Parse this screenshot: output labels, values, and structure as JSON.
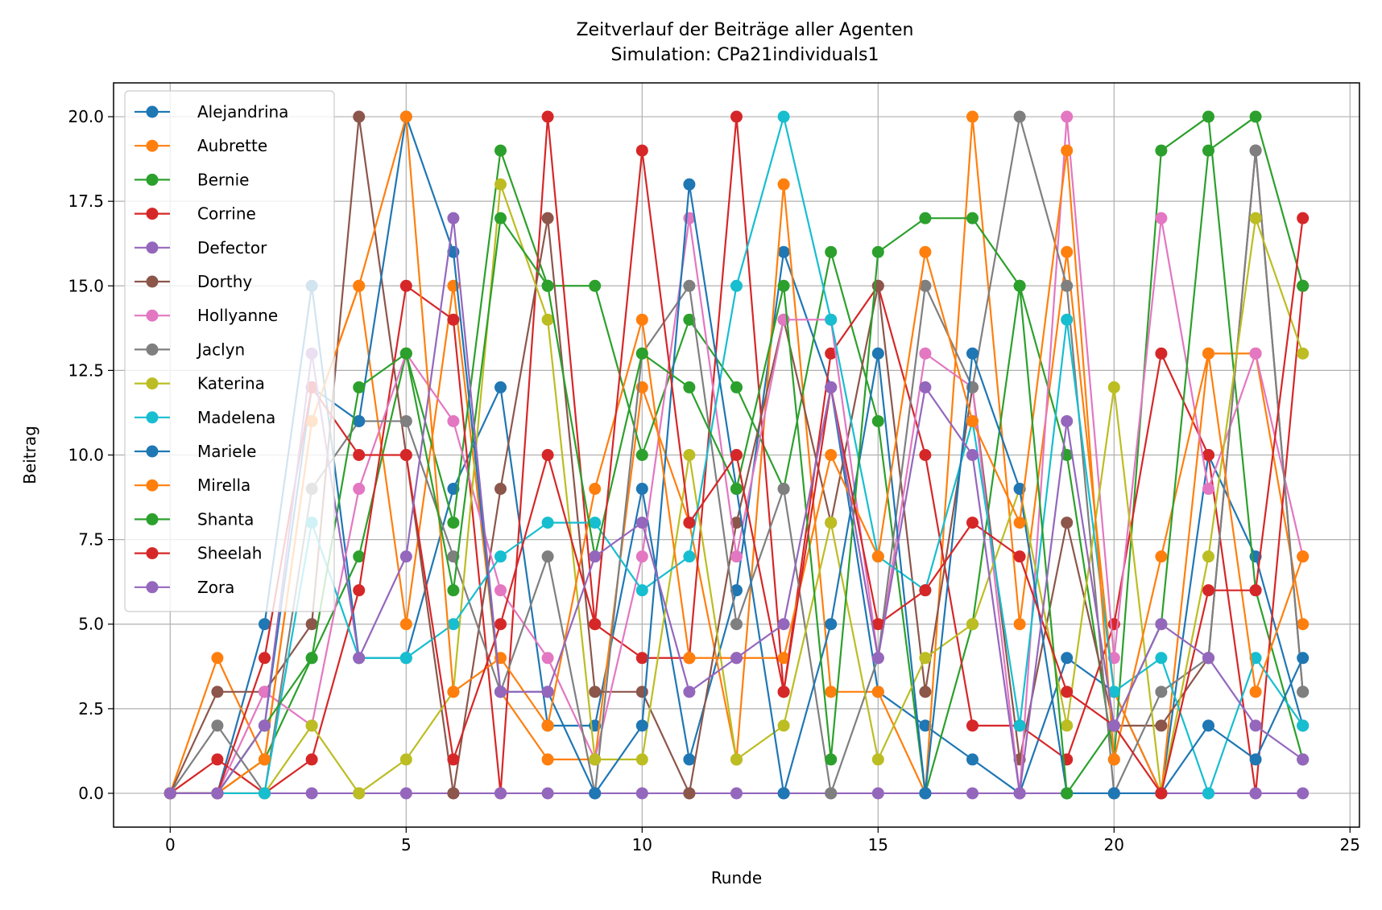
{
  "chart_data": {
    "type": "line",
    "title": "Zeitverlauf der Beiträge aller Agenten",
    "subtitle": "Simulation: CPa21individuals1",
    "xlabel": "Runde",
    "ylabel": "Beitrag",
    "xlim": [
      -1.2,
      25.2
    ],
    "ylim": [
      -1.0,
      21.0
    ],
    "xticks": [
      0,
      5,
      10,
      15,
      20,
      25
    ],
    "yticks": [
      0.0,
      2.5,
      5.0,
      7.5,
      10.0,
      12.5,
      15.0,
      17.5,
      20.0
    ],
    "grid": true,
    "legend_position": "top-left",
    "x": [
      0,
      1,
      2,
      3,
      4,
      5,
      6,
      7,
      8,
      9,
      10,
      11,
      12,
      13,
      14,
      15,
      16,
      17,
      18,
      19,
      20,
      21,
      22,
      23,
      24
    ],
    "series": [
      {
        "name": "Alejandrina",
        "color": "#1f77b4",
        "values": [
          0,
          0,
          5,
          15,
          4,
          4,
          9,
          12,
          2,
          2,
          9,
          1,
          6,
          16,
          12,
          3,
          2,
          1,
          0,
          4,
          3,
          0,
          10,
          7,
          2
        ]
      },
      {
        "name": "Aubrette",
        "color": "#ff7f0e",
        "values": [
          0,
          4,
          1,
          11,
          15,
          5,
          15,
          3,
          1,
          1,
          12,
          8,
          1,
          18,
          3,
          3,
          0,
          20,
          5,
          16,
          3,
          0,
          13,
          13,
          5
        ]
      },
      {
        "name": "Bernie",
        "color": "#2ca02c",
        "values": [
          0,
          0,
          1,
          4,
          7,
          13,
          8,
          19,
          15,
          15,
          10,
          14,
          12,
          9,
          16,
          11,
          0,
          5,
          15,
          10,
          1,
          19,
          20,
          6,
          1
        ]
      },
      {
        "name": "Corrine",
        "color": "#d62728",
        "values": [
          0,
          1,
          0,
          1,
          6,
          15,
          14,
          0,
          20,
          5,
          4,
          4,
          20,
          3,
          13,
          15,
          10,
          2,
          2,
          1,
          5,
          13,
          10,
          0,
          15
        ]
      },
      {
        "name": "Defector",
        "color": "#9467bd",
        "values": [
          0,
          0,
          0,
          0,
          0,
          0,
          0,
          0,
          0,
          0,
          0,
          0,
          0,
          0,
          0,
          0,
          0,
          0,
          0,
          0,
          0,
          0,
          0,
          0,
          0
        ]
      },
      {
        "name": "Dorthy",
        "color": "#8c564b",
        "values": [
          0,
          3,
          3,
          5,
          20,
          10,
          0,
          9,
          17,
          3,
          3,
          0,
          8,
          14,
          8,
          15,
          3,
          12,
          1,
          8,
          2,
          2,
          4,
          19,
          3
        ]
      },
      {
        "name": "Hollyanne",
        "color": "#e377c2",
        "values": [
          0,
          0,
          3,
          2,
          9,
          13,
          11,
          6,
          4,
          1,
          7,
          17,
          7,
          14,
          14,
          4,
          13,
          12,
          0,
          20,
          4,
          17,
          9,
          13,
          7
        ]
      },
      {
        "name": "Jaclyn",
        "color": "#7f7f7f",
        "values": [
          0,
          2,
          0,
          9,
          11,
          11,
          7,
          3,
          7,
          0,
          13,
          15,
          5,
          9,
          0,
          4,
          15,
          12,
          20,
          15,
          0,
          3,
          4,
          19,
          3
        ]
      },
      {
        "name": "Katerina",
        "color": "#bcbd22",
        "values": [
          0,
          0,
          0,
          2,
          0,
          1,
          3,
          18,
          14,
          1,
          1,
          10,
          1,
          2,
          8,
          1,
          4,
          5,
          9,
          2,
          12,
          0,
          7,
          17,
          13
        ]
      },
      {
        "name": "Madelena",
        "color": "#17becf",
        "values": [
          0,
          0,
          0,
          8,
          4,
          4,
          5,
          7,
          8,
          8,
          6,
          7,
          15,
          20,
          14,
          7,
          6,
          11,
          2,
          14,
          3,
          4,
          0,
          4,
          2
        ]
      },
      {
        "name": "Mariele",
        "color": "#1f77b4",
        "values": [
          0,
          0,
          2,
          12,
          11,
          20,
          16,
          3,
          3,
          0,
          2,
          18,
          9,
          0,
          5,
          13,
          0,
          13,
          9,
          0,
          0,
          0,
          2,
          1,
          4
        ]
      },
      {
        "name": "Mirella",
        "color": "#ff7f0e",
        "values": [
          0,
          0,
          1,
          11,
          15,
          20,
          3,
          4,
          2,
          9,
          14,
          4,
          4,
          4,
          10,
          7,
          16,
          11,
          8,
          19,
          1,
          7,
          13,
          3,
          7
        ]
      },
      {
        "name": "Shanta",
        "color": "#2ca02c",
        "values": [
          0,
          0,
          2,
          4,
          12,
          13,
          6,
          17,
          15,
          7,
          13,
          12,
          9,
          15,
          1,
          16,
          17,
          17,
          15,
          0,
          2,
          5,
          19,
          20,
          15
        ]
      },
      {
        "name": "Sheelah",
        "color": "#d62728",
        "values": [
          0,
          0,
          4,
          12,
          10,
          10,
          1,
          5,
          10,
          5,
          19,
          8,
          10,
          3,
          12,
          5,
          6,
          8,
          7,
          3,
          2,
          0,
          6,
          6,
          17
        ]
      },
      {
        "name": "Zora",
        "color": "#9467bd",
        "values": [
          0,
          0,
          2,
          13,
          4,
          7,
          17,
          3,
          3,
          7,
          8,
          3,
          4,
          5,
          12,
          4,
          12,
          10,
          0,
          11,
          2,
          5,
          4,
          2,
          1
        ]
      }
    ]
  }
}
